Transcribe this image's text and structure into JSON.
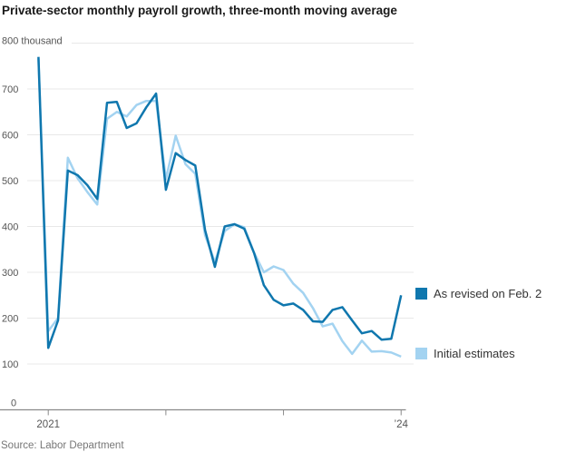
{
  "title": "Private-sector monthly payroll growth, three-month moving average",
  "source": "Source: Labor Department",
  "legend": {
    "revised": {
      "label": "As revised on Feb. 2",
      "color": "#0f77ae"
    },
    "initial": {
      "label": "Initial estimates",
      "color": "#a3d3f1"
    }
  },
  "y_axis": {
    "unit_top_label": "800 thousand",
    "tick_labels": [
      "0",
      "100",
      "200",
      "300",
      "400",
      "500",
      "600",
      "700"
    ]
  },
  "x_axis": {
    "ticks": [
      {
        "label": "2021",
        "month_index": 1
      },
      {
        "label": "",
        "month_index": 13
      },
      {
        "label": "",
        "month_index": 25
      },
      {
        "label": "’24",
        "month_index": 37
      }
    ]
  },
  "chart_data": {
    "type": "line",
    "unit": "thousand",
    "title": "Private-sector monthly payroll growth, three-month moving average",
    "ylim": [
      0,
      800
    ],
    "ytick_step": 100,
    "grid": true,
    "legend_position": "right",
    "x": [
      "Dec. 2020",
      "Jan. 2021",
      "Feb. 2021",
      "Mar. 2021",
      "Apr. 2021",
      "May 2021",
      "June 2021",
      "July 2021",
      "Aug. 2021",
      "Sept. 2021",
      "Oct. 2021",
      "Nov. 2021",
      "Dec. 2021",
      "Jan. 2022",
      "Feb. 2022",
      "Mar. 2022",
      "Apr. 2022",
      "May 2022",
      "June 2022",
      "July 2022",
      "Aug. 2022",
      "Sept. 2022",
      "Oct. 2022",
      "Nov. 2022",
      "Dec. 2022",
      "Jan. 2023",
      "Feb. 2023",
      "Mar. 2023",
      "Apr. 2023",
      "May 2023",
      "June 2023",
      "July 2023",
      "Aug. 2023",
      "Sept. 2023",
      "Oct. 2023",
      "Nov. 2023",
      "Dec. 2023",
      "Jan. 2024"
    ],
    "series": [
      {
        "name": "Initial estimates",
        "color": "#a3d3f1",
        "values": [
          765,
          172,
          200,
          550,
          505,
          475,
          448,
          635,
          650,
          640,
          665,
          674,
          674,
          503,
          598,
          536,
          515,
          381,
          322,
          390,
          405,
          398,
          343,
          300,
          313,
          305,
          275,
          255,
          222,
          182,
          188,
          150,
          122,
          151,
          127,
          128,
          125,
          116
        ]
      },
      {
        "name": "As revised on Feb. 2",
        "color": "#0f77ae",
        "values": [
          770,
          135,
          195,
          522,
          512,
          490,
          460,
          670,
          672,
          615,
          625,
          660,
          690,
          480,
          560,
          545,
          533,
          392,
          312,
          400,
          405,
          395,
          342,
          272,
          240,
          228,
          232,
          218,
          193,
          192,
          218,
          224,
          195,
          167,
          172,
          153,
          155,
          250
        ]
      }
    ]
  }
}
